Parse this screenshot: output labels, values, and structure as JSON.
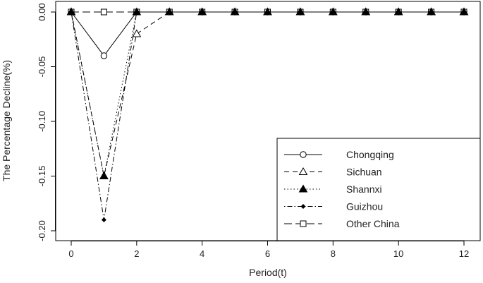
{
  "chart_data": {
    "type": "line",
    "title": "",
    "xlabel": "Period(t)",
    "ylabel": "The Percentage Decline(%)",
    "xlim": [
      0,
      12
    ],
    "ylim": [
      -0.205,
      0.003
    ],
    "x_ticks": [
      0,
      2,
      4,
      6,
      8,
      10,
      12
    ],
    "y_ticks": [
      0.0,
      -0.05,
      -0.1,
      -0.15,
      -0.2
    ],
    "y_tick_labels": [
      "0.00",
      "-0.05",
      "-0.10",
      "-0.15",
      "-0.20"
    ],
    "grid": false,
    "legend_position": "bottom-right",
    "x": [
      0,
      1,
      2,
      3,
      4,
      5,
      6,
      7,
      8,
      9,
      10,
      11,
      12
    ],
    "series": [
      {
        "name": "Chongqing",
        "marker": "circle-open",
        "dash": "solid",
        "values": [
          0,
          -0.04,
          0,
          0,
          0,
          0,
          0,
          0,
          0,
          0,
          0,
          0,
          0
        ]
      },
      {
        "name": "Sichuan",
        "marker": "triangle-open",
        "dash": "dashed",
        "values": [
          0,
          -0.15,
          -0.02,
          0,
          0,
          0,
          0,
          0,
          0,
          0,
          0,
          0,
          0
        ]
      },
      {
        "name": "Shannxi",
        "marker": "triangle-filled",
        "dash": "dotted",
        "values": [
          0,
          -0.15,
          0,
          0,
          0,
          0,
          0,
          0,
          0,
          0,
          0,
          0,
          0
        ]
      },
      {
        "name": "Guizhou",
        "marker": "diamond-filled",
        "dash": "dotdash",
        "values": [
          0,
          -0.19,
          0,
          0,
          0,
          0,
          0,
          0,
          0,
          0,
          0,
          0,
          0
        ]
      },
      {
        "name": "Other China",
        "marker": "square-open",
        "dash": "longdash",
        "values": [
          0,
          0,
          0,
          0,
          0,
          0,
          0,
          0,
          0,
          0,
          0,
          0,
          0
        ]
      }
    ]
  }
}
